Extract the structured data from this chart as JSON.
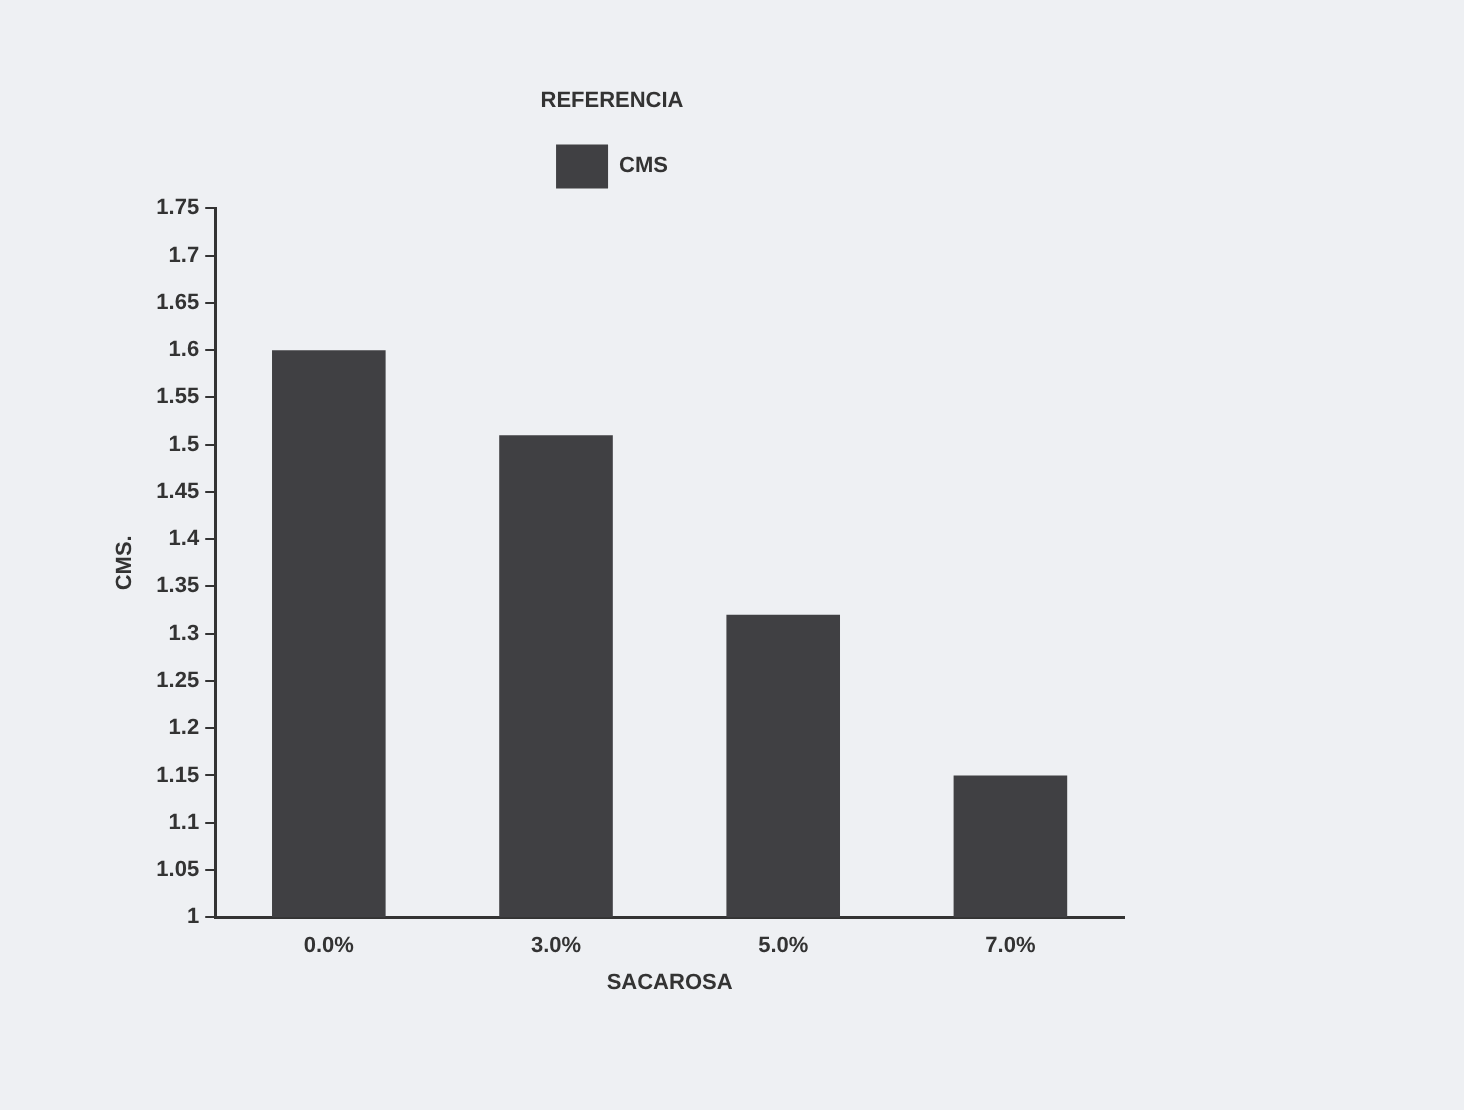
{
  "chart_data": {
    "type": "bar",
    "xlabel": "SACAROSA",
    "ylabel": "CMS.",
    "legend_title": "REFERENCIA",
    "legend": "top",
    "categories": [
      "0.0%",
      "3.0%",
      "5.0%",
      "7.0%"
    ],
    "series": [
      {
        "name": "CMS",
        "color": "#404043",
        "values": [
          1.6,
          1.51,
          1.32,
          1.15
        ]
      }
    ],
    "ylim": [
      1,
      1.75
    ],
    "yticks": [
      1,
      1.05,
      1.1,
      1.15,
      1.2,
      1.25,
      1.3,
      1.35,
      1.4,
      1.45,
      1.5,
      1.55,
      1.6,
      1.65,
      1.7,
      1.75
    ],
    "grid": false
  }
}
